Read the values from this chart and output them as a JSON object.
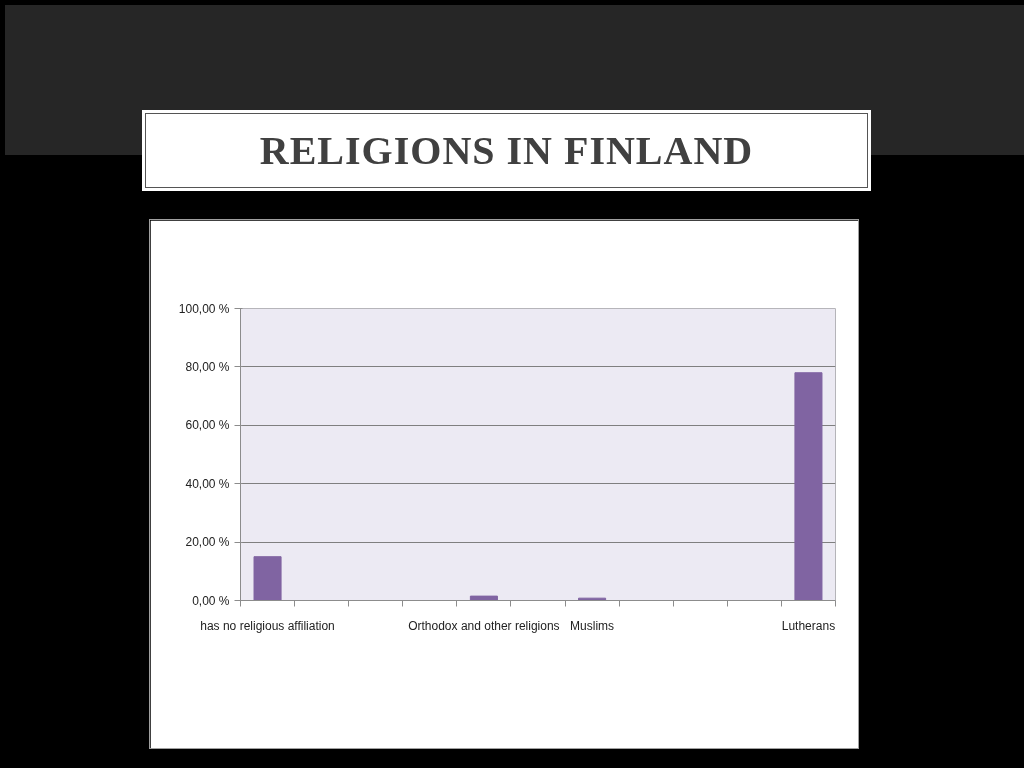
{
  "chart_data": {
    "type": "bar",
    "title": "RELIGIONS IN FINLAND",
    "categories": [
      "has no religious affiliation",
      null,
      null,
      null,
      "Orthodox and other religions",
      null,
      "Muslims",
      null,
      null,
      null,
      "Lutherans"
    ],
    "values": [
      15,
      null,
      null,
      null,
      1.5,
      null,
      0.8,
      null,
      null,
      null,
      78
    ],
    "color": "#8064a2",
    "ylim": [
      0,
      100
    ],
    "yticks": [
      {
        "value": 0,
        "label": "0,00 %"
      },
      {
        "value": 20,
        "label": "20,00 %"
      },
      {
        "value": 40,
        "label": "40,00 %"
      },
      {
        "value": 60,
        "label": "60,00 %"
      },
      {
        "value": 80,
        "label": "80,00 %"
      },
      {
        "value": 100,
        "label": "100,00 %"
      }
    ],
    "grid": "y"
  }
}
